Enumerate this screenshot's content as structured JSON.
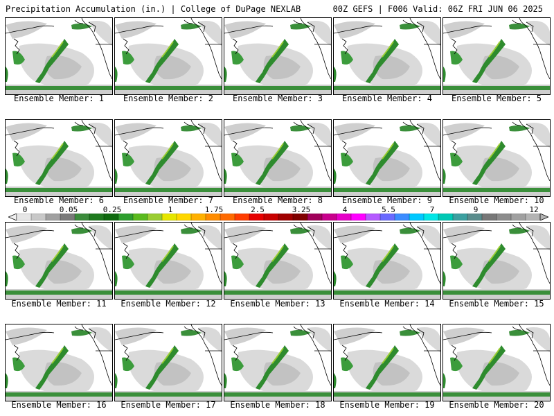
{
  "header": {
    "left_title": "Precipitation Accumulation (in.) | College of DuPage NEXLAB",
    "right_title": "00Z GEFS | F006 Valid: 06Z FRI JUN 06 2025"
  },
  "caption_prefix": "Ensemble Member:",
  "members": [
    1,
    2,
    3,
    4,
    5,
    6,
    7,
    8,
    9,
    10,
    11,
    12,
    13,
    14,
    15,
    16,
    17,
    18,
    19,
    20
  ],
  "colorbar": {
    "tick_labels": [
      "0",
      "0.05",
      "0.25",
      "1",
      "1.75",
      "2.5",
      "3.25",
      "4",
      "5.5",
      "7",
      "9",
      "12"
    ],
    "colors": [
      "#e6e6e6",
      "#c8c8c8",
      "#a0a0a0",
      "#7a7a7a",
      "#3c8c3c",
      "#1e7a1e",
      "#0f6a0f",
      "#2e9e2e",
      "#5aba1e",
      "#9acd32",
      "#e6e600",
      "#ffd700",
      "#ffb000",
      "#ff8c00",
      "#ff6a00",
      "#ff3c00",
      "#e60000",
      "#c80000",
      "#a00000",
      "#800000",
      "#a0005a",
      "#c8008c",
      "#e600c8",
      "#ff00ff",
      "#b45aff",
      "#6a6aff",
      "#3c8cff",
      "#00c8ff",
      "#00e6e6",
      "#00c8b4",
      "#3ca0a0",
      "#5a8c8c",
      "#787878",
      "#8c8c8c",
      "#a0a0a0",
      "#b4b4b4"
    ]
  }
}
